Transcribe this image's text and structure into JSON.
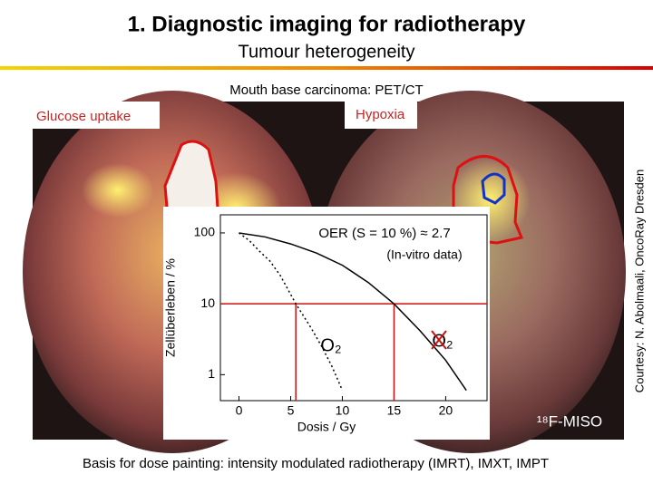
{
  "header": {
    "title": "1. Diagnostic imaging for radiotherapy",
    "subtitle": "Tumour heterogeneity"
  },
  "figure": {
    "caption": "Mouth base carcinoma: PET/CT",
    "left_label": "Glucose uptake",
    "right_label": "Hypoxia",
    "credit": "Courtesy: N. Abolmaali, OncoRay Dresden",
    "tracer_label": "¹⁸F-MISO"
  },
  "inset": {
    "type": "line",
    "title": "OER (S = 10 %) ≈ 2.7",
    "subtitle": "(In-vitro data)",
    "x_label": "Dosis / Gy",
    "y_label": "Zellüberleben / %",
    "xlim": [
      -1.8,
      24
    ],
    "ylim": [
      0.43,
      180
    ],
    "log_y": true,
    "xticks": [
      0,
      5,
      10,
      15,
      20
    ],
    "yticks": [
      1,
      10,
      100
    ],
    "series": [
      {
        "name": "O₂",
        "color": "#000000",
        "style": "dotted",
        "crossed": false,
        "x": [
          0,
          1,
          2,
          3,
          4,
          5.5,
          7,
          8,
          9,
          10
        ],
        "values": [
          100,
          78,
          55,
          40,
          25,
          10,
          4.5,
          2.5,
          1.3,
          0.6
        ]
      },
      {
        "name": "O₂",
        "color": "#000000",
        "style": "solid",
        "crossed": true,
        "x": [
          0,
          2.5,
          5,
          7.5,
          10,
          12.5,
          15,
          17.5,
          20,
          22
        ],
        "values": [
          100,
          88,
          70,
          52,
          35,
          20,
          10,
          4.2,
          1.6,
          0.6
        ]
      }
    ],
    "reference": {
      "color": "#cc1111",
      "survival": 10,
      "doses": [
        5.5,
        15
      ]
    }
  },
  "footer": "Basis for dose painting: intensity modulated radiotherapy (IMRT), IMXT, IMPT"
}
